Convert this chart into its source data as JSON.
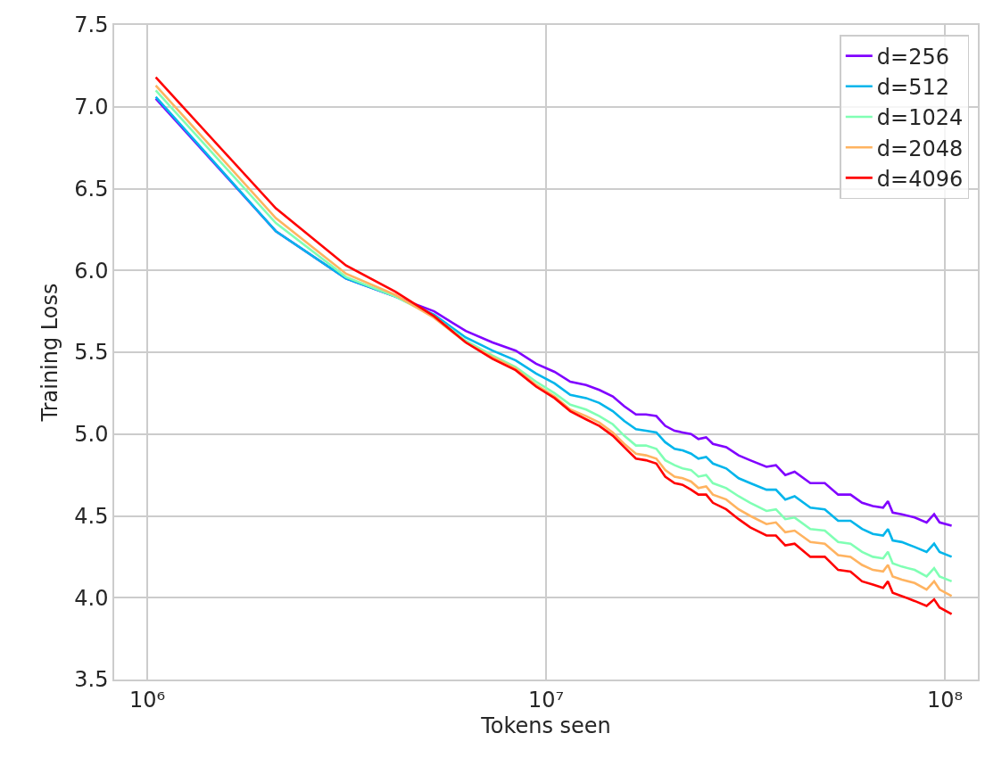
{
  "chart_data": {
    "type": "line",
    "xlabel": "Tokens seen",
    "ylabel": "Training Loss",
    "log": "x",
    "grid": true,
    "legend": "top right",
    "line_style": "solid",
    "marker": "none",
    "xlim": [
      826000,
      121000000
    ],
    "xticks": [
      {
        "value": 1000000,
        "label": "10⁶"
      },
      {
        "value": 10000000,
        "label": "10⁷"
      },
      {
        "value": 100000000,
        "label": "10⁸"
      }
    ],
    "ylim": [
      3.5,
      7.5
    ],
    "yticks": [
      {
        "value": 3.5,
        "label": "3.5"
      },
      {
        "value": 4,
        "label": "4.0"
      },
      {
        "value": 4.5,
        "label": "4.5"
      },
      {
        "value": 5,
        "label": "5.0"
      },
      {
        "value": 5.5,
        "label": "5.5"
      },
      {
        "value": 6,
        "label": "6.0"
      },
      {
        "value": 6.5,
        "label": "6.5"
      },
      {
        "value": 7,
        "label": "7.0"
      },
      {
        "value": 7.5,
        "label": "7.5"
      }
    ],
    "x": [
      1050000,
      2100000,
      3150000,
      4190000,
      5240000,
      6290000,
      7340000,
      8390000,
      9440000,
      10500000,
      11500000,
      12600000,
      13600000,
      14700000,
      15700000,
      16800000,
      17800000,
      18900000,
      19900000,
      21000000,
      22000000,
      23100000,
      24100000,
      25200000,
      26200000,
      28300000,
      30400000,
      32500000,
      35700000,
      37700000,
      39800000,
      42000000,
      46000000,
      50000000,
      54000000,
      58000000,
      62000000,
      66000000,
      70000000,
      72000000,
      74000000,
      78000000,
      84000000,
      90000000,
      94000000,
      97000000,
      104000000
    ],
    "series": [
      {
        "name": "d=256",
        "color": "#8000ff",
        "values": [
          7.05,
          6.24,
          5.95,
          5.84,
          5.75,
          5.63,
          5.56,
          5.51,
          5.43,
          5.38,
          5.32,
          5.3,
          5.27,
          5.23,
          5.17,
          5.12,
          5.12,
          5.11,
          5.05,
          5.02,
          5.01,
          5.0,
          4.97,
          4.98,
          4.94,
          4.92,
          4.87,
          4.84,
          4.8,
          4.81,
          4.75,
          4.77,
          4.7,
          4.7,
          4.63,
          4.63,
          4.58,
          4.56,
          4.55,
          4.59,
          4.52,
          4.51,
          4.49,
          4.46,
          4.51,
          4.46,
          4.44
        ]
      },
      {
        "name": "d=512",
        "color": "#00b5eb",
        "values": [
          7.06,
          6.24,
          5.95,
          5.84,
          5.73,
          5.59,
          5.51,
          5.45,
          5.37,
          5.31,
          5.24,
          5.22,
          5.19,
          5.14,
          5.08,
          5.03,
          5.02,
          5.01,
          4.95,
          4.91,
          4.9,
          4.88,
          4.85,
          4.86,
          4.82,
          4.79,
          4.73,
          4.7,
          4.66,
          4.66,
          4.6,
          4.62,
          4.55,
          4.54,
          4.47,
          4.47,
          4.42,
          4.39,
          4.38,
          4.42,
          4.35,
          4.34,
          4.31,
          4.28,
          4.33,
          4.28,
          4.25
        ]
      },
      {
        "name": "d=1024",
        "color": "#80ffb4",
        "values": [
          7.1,
          6.29,
          5.96,
          5.84,
          5.72,
          5.57,
          5.48,
          5.41,
          5.32,
          5.25,
          5.18,
          5.15,
          5.11,
          5.06,
          4.99,
          4.93,
          4.93,
          4.91,
          4.84,
          4.81,
          4.79,
          4.78,
          4.74,
          4.75,
          4.7,
          4.67,
          4.62,
          4.58,
          4.53,
          4.54,
          4.48,
          4.49,
          4.42,
          4.41,
          4.34,
          4.33,
          4.28,
          4.25,
          4.24,
          4.28,
          4.21,
          4.19,
          4.17,
          4.13,
          4.18,
          4.13,
          4.1
        ]
      },
      {
        "name": "d=2048",
        "color": "#ffb360",
        "values": [
          7.13,
          6.32,
          5.98,
          5.85,
          5.71,
          5.56,
          5.47,
          5.4,
          5.3,
          5.23,
          5.15,
          5.11,
          5.07,
          5.01,
          4.94,
          4.88,
          4.87,
          4.85,
          4.78,
          4.74,
          4.73,
          4.71,
          4.67,
          4.68,
          4.63,
          4.6,
          4.54,
          4.5,
          4.45,
          4.46,
          4.4,
          4.41,
          4.34,
          4.33,
          4.26,
          4.25,
          4.2,
          4.17,
          4.16,
          4.2,
          4.13,
          4.11,
          4.09,
          4.05,
          4.1,
          4.05,
          4.01
        ]
      },
      {
        "name": "d=4096",
        "color": "#ff0000",
        "values": [
          7.18,
          6.38,
          6.03,
          5.87,
          5.72,
          5.56,
          5.46,
          5.39,
          5.29,
          5.22,
          5.14,
          5.09,
          5.05,
          4.99,
          4.92,
          4.85,
          4.84,
          4.82,
          4.74,
          4.7,
          4.69,
          4.66,
          4.63,
          4.63,
          4.58,
          4.54,
          4.48,
          4.43,
          4.38,
          4.38,
          4.32,
          4.33,
          4.25,
          4.25,
          4.17,
          4.16,
          4.1,
          4.08,
          4.06,
          4.1,
          4.03,
          4.01,
          3.98,
          3.95,
          3.99,
          3.94,
          3.9
        ]
      }
    ]
  }
}
